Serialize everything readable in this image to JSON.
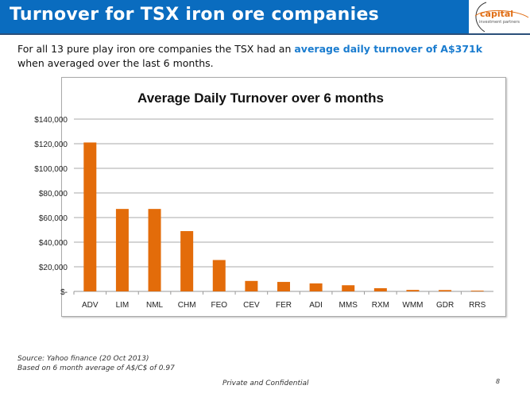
{
  "slide": {
    "title": "Turnover for TSX iron ore companies",
    "logo": {
      "line1": "capital",
      "line2": "investment partners"
    },
    "intro_before": "For all 13 pure play iron ore companies the TSX had an ",
    "intro_highlight": "average daily turnover of A$371k",
    "intro_after": " when averaged over the last 6 months.",
    "source": "Source: Yahoo finance (20 Oct 2013)",
    "note": "Based on 6 month average of A$/C$ of 0.97",
    "footer": "Private and Confidential",
    "page_number": "8",
    "colors": {
      "title_bar": "#0a6cbf",
      "bar": "#e36c0a",
      "highlight": "#1a7ccf"
    }
  },
  "chart_data": {
    "type": "bar",
    "title": "Average Daily  Turnover over 6 months",
    "categories": [
      "ADV",
      "LIM",
      "NML",
      "CHM",
      "FEO",
      "CEV",
      "FER",
      "ADI",
      "MMS",
      "RXM",
      "WMM",
      "GDR",
      "RRS"
    ],
    "values": [
      121000,
      67000,
      67000,
      49000,
      25500,
      8500,
      7700,
      6500,
      5000,
      2600,
      1200,
      1100,
      600
    ],
    "ylim": [
      0,
      140000
    ],
    "yticks": [
      0,
      20000,
      40000,
      60000,
      80000,
      100000,
      120000,
      140000
    ],
    "ytick_labels": [
      "$-",
      "$20,000",
      "$40,000",
      "$60,000",
      "$80,000",
      "$100,000",
      "$120,000",
      "$140,000"
    ],
    "xlabel": "",
    "ylabel": "",
    "grid": true,
    "legend": "none"
  }
}
